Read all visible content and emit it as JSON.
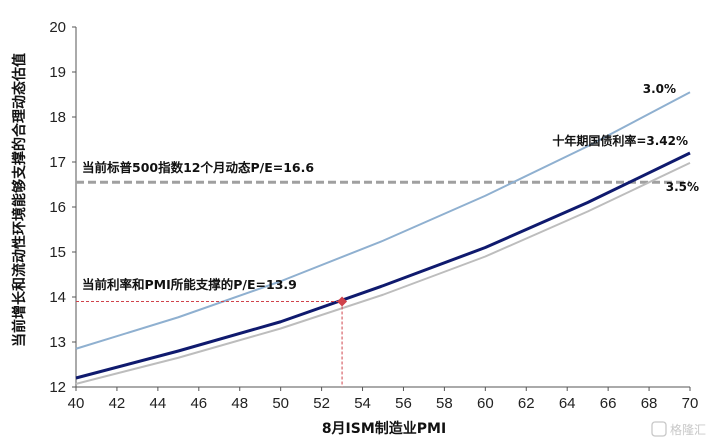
{
  "chart_data": {
    "type": "line",
    "xlabel": "8月ISM制造业PMI",
    "ylabel": "当前增长和流动性环境能够支撑的合理动态估值",
    "xlim": [
      40,
      70
    ],
    "ylim": [
      12,
      20
    ],
    "x_ticks": [
      "40",
      "42",
      "44",
      "46",
      "48",
      "50",
      "52",
      "54",
      "56",
      "58",
      "60",
      "62",
      "64",
      "66",
      "68",
      "70"
    ],
    "y_ticks": [
      "12",
      "13",
      "14",
      "15",
      "16",
      "17",
      "18",
      "19",
      "20"
    ],
    "grid": false,
    "series": [
      {
        "name": "3.0%",
        "color": "#8fb0d0",
        "x": [
          40,
          45,
          50,
          55,
          60,
          65,
          70
        ],
        "y": [
          12.85,
          13.55,
          14.35,
          15.25,
          16.25,
          17.35,
          18.55
        ]
      },
      {
        "name": "十年期国债利率=3.42%",
        "color": "#0f1a6e",
        "x": [
          40,
          45,
          50,
          55,
          60,
          65,
          70
        ],
        "y": [
          12.2,
          12.8,
          13.45,
          14.25,
          15.1,
          16.1,
          17.2
        ]
      },
      {
        "name": "3.5%",
        "color": "#bdbdbd",
        "x": [
          40,
          45,
          50,
          55,
          60,
          65,
          70
        ],
        "y": [
          12.07,
          12.65,
          13.3,
          14.05,
          14.9,
          15.9,
          16.98
        ]
      }
    ],
    "reference_line": {
      "label": "当前标普500指数12个月动态P/E=16.6",
      "y": 16.55,
      "color": "#a0a0a0"
    },
    "marker": {
      "label": "当前利率和PMI所能支撑的P/E=13.9",
      "x": 53,
      "y": 13.9,
      "color": "#d0434b"
    }
  },
  "watermark": "格隆汇"
}
